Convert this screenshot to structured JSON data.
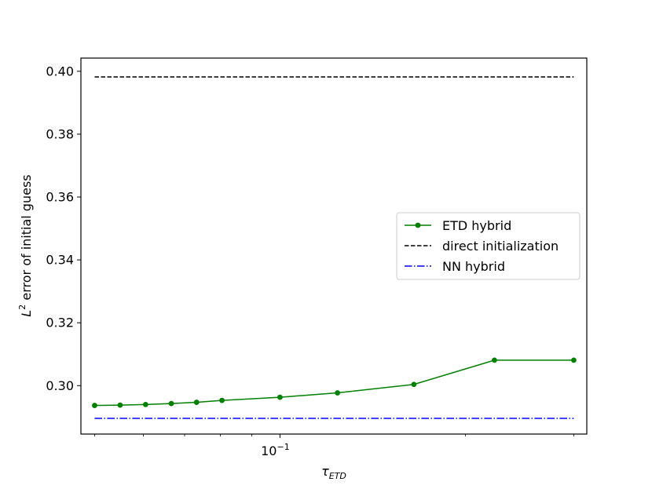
{
  "chart_data": {
    "type": "line",
    "x_scale": "log",
    "xlabel_main": "τ",
    "xlabel_sub": "ETD",
    "ylabel_sup": "2",
    "ylabel_main": "L",
    "ylabel_rest": " error of initial guess",
    "xlim": [
      0.0475,
      0.315
    ],
    "ylim": [
      0.2846,
      0.4042
    ],
    "x_major_ticks": [
      {
        "value": 0.1,
        "base": "10",
        "exp": "−1"
      }
    ],
    "x_minor_ticks": [
      0.05,
      0.06,
      0.07,
      0.08,
      0.09,
      0.2,
      0.3
    ],
    "y_ticks": [
      0.3,
      0.32,
      0.34,
      0.36,
      0.38,
      0.4
    ],
    "y_tick_labels": [
      "0.30",
      "0.32",
      "0.34",
      "0.36",
      "0.38",
      "0.40"
    ],
    "series": [
      {
        "name": "ETD hybrid",
        "color": "#008000",
        "style": "solid-marker",
        "x": [
          0.05,
          0.055,
          0.0605,
          0.0666,
          0.0732,
          0.0805,
          0.1,
          0.124,
          0.165,
          0.223,
          0.3
        ],
        "y": [
          0.2937,
          0.2938,
          0.294,
          0.2943,
          0.2947,
          0.2953,
          0.2963,
          0.2977,
          0.3004,
          0.3081,
          0.3081
        ]
      },
      {
        "name": "direct initialization",
        "color": "#000000",
        "style": "dashed",
        "x": [
          0.05,
          0.3
        ],
        "y": [
          0.3982,
          0.3982
        ]
      },
      {
        "name": "NN hybrid",
        "color": "#0000ff",
        "style": "dashdot",
        "x": [
          0.05,
          0.3
        ],
        "y": [
          0.2896,
          0.2896
        ]
      }
    ],
    "legend_position": "center-right",
    "grid": false
  }
}
